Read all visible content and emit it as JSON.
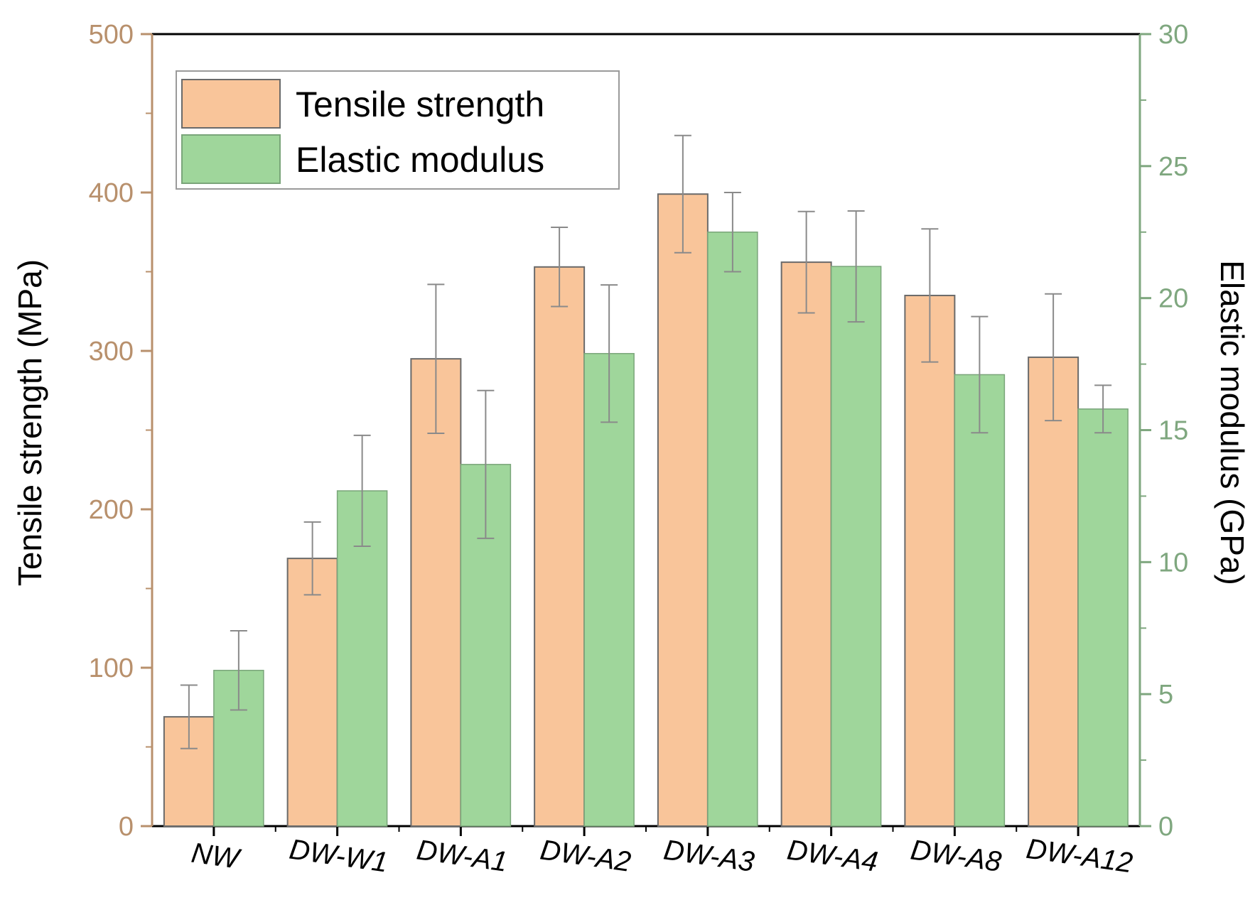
{
  "chart_data": {
    "type": "bar",
    "categories": [
      "NW",
      "DW-W1",
      "DW-A1",
      "DW-A2",
      "DW-A3",
      "DW-A4",
      "DW-A8",
      "DW-A12"
    ],
    "series": [
      {
        "name": "Tensile strength",
        "axis": "left",
        "color": "#f9c59a",
        "values": [
          69,
          169,
          295,
          353,
          399,
          356,
          335,
          296
        ],
        "errors": [
          20,
          23,
          47,
          25,
          37,
          32,
          42,
          40
        ]
      },
      {
        "name": "Elastic modulus",
        "axis": "right",
        "color": "#9fd69b",
        "values": [
          5.9,
          12.7,
          13.7,
          17.9,
          22.5,
          21.2,
          17.1,
          15.8
        ],
        "errors": [
          1.5,
          2.1,
          2.8,
          2.6,
          1.5,
          2.1,
          2.2,
          0.9
        ]
      }
    ],
    "ylabel": "Tensile strength (MPa)",
    "y2label": "Elastic modulus (GPa)",
    "ylim": [
      0,
      500
    ],
    "y2lim": [
      0,
      30
    ],
    "yticks": [
      "0",
      "100",
      "200",
      "300",
      "400",
      "500"
    ],
    "y2ticks": [
      "0",
      "5",
      "10",
      "15",
      "20",
      "25",
      "30"
    ],
    "legend": {
      "position": "top-left",
      "entries": [
        "Tensile strength",
        "Elastic modulus"
      ]
    },
    "left_axis_color": "#b8906c",
    "right_axis_color": "#7fa77f",
    "grid": false
  }
}
